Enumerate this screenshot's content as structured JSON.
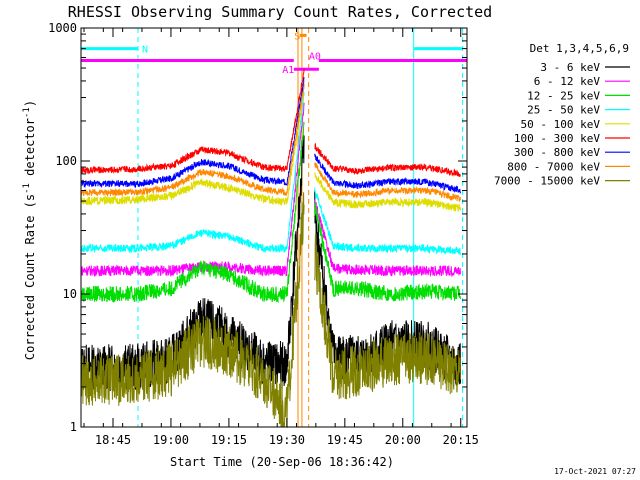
{
  "chart_data": {
    "type": "line",
    "title": "RHESSI Observing Summary Count Rates, Corrected",
    "xlabel": "Start Time (20-Sep-06 18:36:42)",
    "ylabel_parts": [
      "Corrected Count Rate (s",
      "-1",
      " detector",
      "-1",
      ")"
    ],
    "yscale": "log",
    "ylim": [
      1,
      1000
    ],
    "y_ticks": [
      {
        "v": 1,
        "label": "1"
      },
      {
        "v": 10,
        "label": "10"
      },
      {
        "v": 100,
        "label": "100"
      },
      {
        "v": 1000,
        "label": "1000"
      }
    ],
    "xlim": [
      18.612,
      20.277
    ],
    "x_ticks": [
      {
        "t": 18.75,
        "label": "18:45"
      },
      {
        "t": 19.0,
        "label": "19:00"
      },
      {
        "t": 19.25,
        "label": "19:15"
      },
      {
        "t": 19.5,
        "label": "19:30"
      },
      {
        "t": 19.75,
        "label": "19:45"
      },
      {
        "t": 20.0,
        "label": "20:00"
      },
      {
        "t": 20.25,
        "label": "20:15"
      }
    ],
    "legend_title": "Det 1,3,4,5,6,9",
    "legend_position": "right",
    "footer_date": "17-Oct-2021 07:27",
    "gaps": [
      [
        19.575,
        19.62
      ]
    ],
    "series": [
      {
        "name": "3 - 6 keV",
        "color": "#000000",
        "points": [
          [
            18.612,
            2.8
          ],
          [
            18.85,
            2.8
          ],
          [
            19.0,
            3.2
          ],
          [
            19.13,
            6.5
          ],
          [
            19.25,
            5
          ],
          [
            19.4,
            3
          ],
          [
            19.5,
            2.9
          ],
          [
            19.575,
            140
          ],
          [
            19.62,
            40
          ],
          [
            19.7,
            3.5
          ],
          [
            19.8,
            3.2
          ],
          [
            19.95,
            4.2
          ],
          [
            20.1,
            4.2
          ],
          [
            20.2,
            3.2
          ],
          [
            20.25,
            2.9
          ]
        ],
        "noise": 0.18
      },
      {
        "name": "6 - 12 keV",
        "color": "#ff00ff",
        "points": [
          [
            18.612,
            15
          ],
          [
            18.85,
            15
          ],
          [
            19.0,
            15
          ],
          [
            19.13,
            16
          ],
          [
            19.25,
            16
          ],
          [
            19.4,
            15
          ],
          [
            19.5,
            15
          ],
          [
            19.575,
            280
          ],
          [
            19.62,
            50
          ],
          [
            19.7,
            15.5
          ],
          [
            19.9,
            15
          ],
          [
            20.1,
            15
          ],
          [
            20.25,
            15
          ]
        ],
        "noise": 0.04
      },
      {
        "name": "12 - 25 keV",
        "color": "#00dd00",
        "points": [
          [
            18.612,
            10
          ],
          [
            18.85,
            10
          ],
          [
            19.0,
            11
          ],
          [
            19.13,
            16
          ],
          [
            19.25,
            14
          ],
          [
            19.4,
            10
          ],
          [
            19.5,
            10
          ],
          [
            19.575,
            200
          ],
          [
            19.62,
            45
          ],
          [
            19.7,
            11
          ],
          [
            19.8,
            11
          ],
          [
            19.95,
            10
          ],
          [
            20.1,
            10.5
          ],
          [
            20.25,
            10
          ]
        ],
        "noise": 0.06
      },
      {
        "name": "25 - 50 keV",
        "color": "#00ffff",
        "points": [
          [
            18.612,
            22
          ],
          [
            18.85,
            22
          ],
          [
            19.0,
            23
          ],
          [
            19.13,
            29
          ],
          [
            19.25,
            27
          ],
          [
            19.4,
            22
          ],
          [
            19.5,
            22
          ],
          [
            19.575,
            330
          ],
          [
            19.62,
            60
          ],
          [
            19.7,
            23
          ],
          [
            19.8,
            22
          ],
          [
            19.95,
            22
          ],
          [
            20.1,
            22
          ],
          [
            20.25,
            21
          ]
        ],
        "noise": 0.03
      },
      {
        "name": "50 - 100 keV",
        "color": "#dddd00",
        "points": [
          [
            18.612,
            50
          ],
          [
            18.85,
            51
          ],
          [
            19.0,
            55
          ],
          [
            19.13,
            69
          ],
          [
            19.25,
            63
          ],
          [
            19.4,
            52
          ],
          [
            19.5,
            49
          ],
          [
            19.575,
            350
          ],
          [
            19.62,
            80
          ],
          [
            19.7,
            49
          ],
          [
            19.8,
            47
          ],
          [
            19.95,
            49
          ],
          [
            20.1,
            49
          ],
          [
            20.25,
            44
          ]
        ],
        "noise": 0.03
      },
      {
        "name": "100 - 300 keV",
        "color": "#ff0000",
        "points": [
          [
            18.612,
            85
          ],
          [
            18.85,
            87
          ],
          [
            19.0,
            92
          ],
          [
            19.13,
            122
          ],
          [
            19.25,
            115
          ],
          [
            19.4,
            90
          ],
          [
            19.5,
            87
          ],
          [
            19.575,
            480
          ],
          [
            19.62,
            130
          ],
          [
            19.7,
            88
          ],
          [
            19.8,
            84
          ],
          [
            19.95,
            89
          ],
          [
            20.1,
            90
          ],
          [
            20.25,
            80
          ]
        ],
        "noise": 0.025
      },
      {
        "name": "300 - 800 keV",
        "color": "#0000ff",
        "points": [
          [
            18.612,
            68
          ],
          [
            18.85,
            67
          ],
          [
            19.0,
            74
          ],
          [
            19.13,
            98
          ],
          [
            19.25,
            92
          ],
          [
            19.4,
            72
          ],
          [
            19.5,
            69
          ],
          [
            19.575,
            420
          ],
          [
            19.62,
            110
          ],
          [
            19.7,
            69
          ],
          [
            19.8,
            65
          ],
          [
            19.95,
            70
          ],
          [
            20.1,
            70
          ],
          [
            20.25,
            60
          ]
        ],
        "noise": 0.025
      },
      {
        "name": "800 - 7000 keV",
        "color": "#ff8800",
        "points": [
          [
            18.612,
            58
          ],
          [
            18.85,
            58
          ],
          [
            19.0,
            63
          ],
          [
            19.13,
            83
          ],
          [
            19.25,
            77
          ],
          [
            19.4,
            61
          ],
          [
            19.5,
            58
          ],
          [
            19.575,
            380
          ],
          [
            19.62,
            95
          ],
          [
            19.7,
            58
          ],
          [
            19.8,
            56
          ],
          [
            19.95,
            60
          ],
          [
            20.1,
            60
          ],
          [
            20.25,
            52
          ]
        ],
        "noise": 0.025
      },
      {
        "name": "7000 - 15000 keV",
        "color": "#808000",
        "points": [
          [
            18.612,
            2.2
          ],
          [
            18.85,
            2.3
          ],
          [
            19.0,
            2.7
          ],
          [
            19.13,
            4.5
          ],
          [
            19.25,
            3.8
          ],
          [
            19.4,
            2.3
          ],
          [
            19.5,
            1.3
          ],
          [
            19.575,
            50
          ],
          [
            19.62,
            20
          ],
          [
            19.7,
            2.5
          ],
          [
            19.8,
            2.6
          ],
          [
            19.95,
            3.2
          ],
          [
            20.1,
            3.3
          ],
          [
            20.25,
            2.6
          ]
        ],
        "noise": 0.2
      }
    ],
    "vertical_lines": [
      {
        "t": 18.612,
        "color": "#00ffff",
        "style": "solid"
      },
      {
        "t": 18.858,
        "color": "#00ffff",
        "style": "dashed"
      },
      {
        "t": 19.548,
        "color": "#ff8800",
        "style": "solid"
      },
      {
        "t": 19.565,
        "color": "#ff8800",
        "style": "solid"
      },
      {
        "t": 19.594,
        "color": "#ff8800",
        "style": "dashed"
      },
      {
        "t": 20.047,
        "color": "#00ffff",
        "style": "solid"
      },
      {
        "t": 20.258,
        "color": "#00ffff",
        "style": "dashed"
      }
    ],
    "flag_bars": [
      {
        "label": "N",
        "color": "#00ffff",
        "level": 700,
        "segments": [
          [
            18.612,
            18.858
          ],
          [
            20.047,
            20.258
          ]
        ],
        "label_at": 18.875
      },
      {
        "label": "",
        "color": "#ff00ff",
        "level": 570,
        "segments": [
          [
            18.612,
            19.53
          ],
          [
            19.638,
            20.277
          ]
        ]
      },
      {
        "label": "A1",
        "color": "#ff00ff",
        "level": 490,
        "segments": [
          [
            19.53,
            19.638
          ]
        ],
        "label_at": 19.48
      },
      {
        "label": "A0",
        "color": "#ff00ff",
        "level": 620,
        "segments": [],
        "label_at": 19.595
      },
      {
        "label": "S",
        "color": "#ff8800",
        "level": 880,
        "segments": [
          [
            19.555,
            19.585
          ]
        ],
        "label_at": 19.532
      }
    ]
  }
}
